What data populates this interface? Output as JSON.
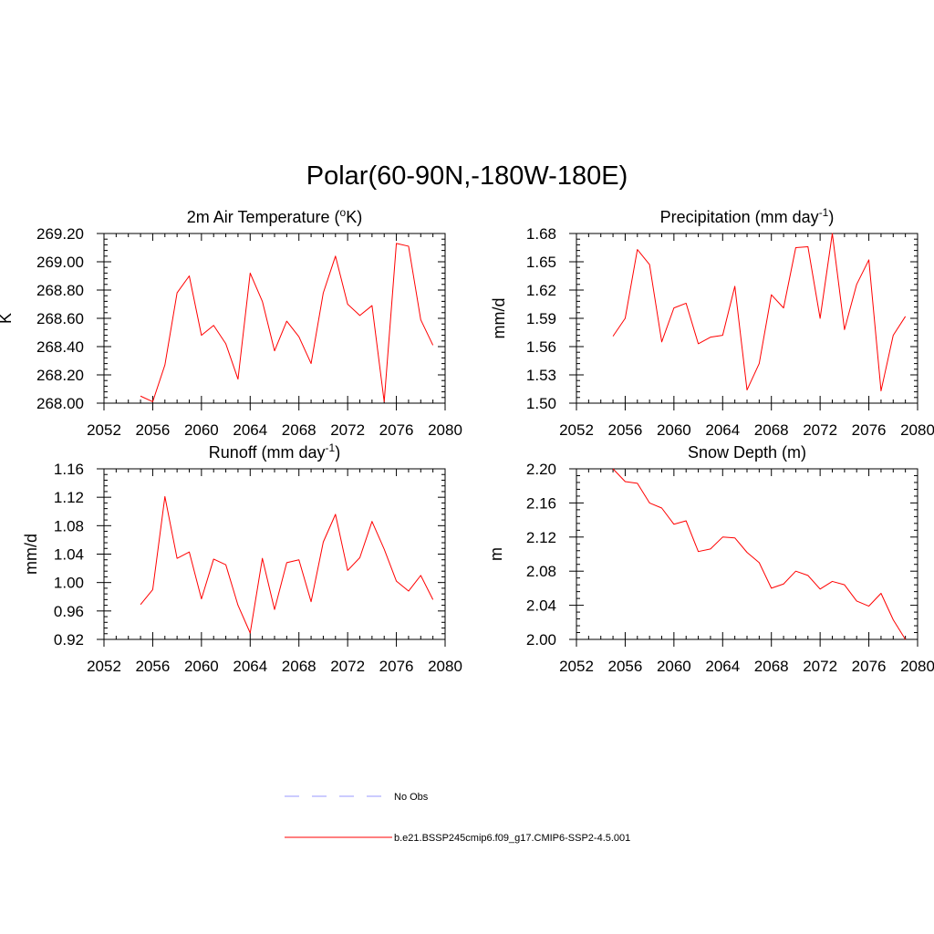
{
  "figure_title": "Polar(60-90N,-180W-180E)",
  "colors": {
    "model": "#ff0000",
    "obs": "#9999ff",
    "axis": "#000000"
  },
  "legend": {
    "obs_label": "No Obs",
    "model_label": "b.e21.BSSP245cmip6.f09_g17.CMIP6-SSP2-4.5.001"
  },
  "chart_data": [
    {
      "type": "line",
      "title": "2m Air Temperature (",
      "title_sup": "o",
      "title_suffix": "K)",
      "title_sup_position": "base",
      "ylabel": "K",
      "xlim": [
        2052,
        2080
      ],
      "ylim": [
        268.0,
        269.2
      ],
      "xticks": [
        "2052",
        "2056",
        "2060",
        "2064",
        "2068",
        "2072",
        "2076",
        "2080"
      ],
      "yticks": [
        "268.00",
        "268.20",
        "268.40",
        "268.60",
        "268.80",
        "269.00",
        "269.20"
      ],
      "x": [
        2055,
        2056,
        2057,
        2058,
        2059,
        2060,
        2061,
        2062,
        2063,
        2064,
        2065,
        2066,
        2067,
        2068,
        2069,
        2070,
        2071,
        2072,
        2073,
        2074,
        2075,
        2076,
        2077,
        2078,
        2079
      ],
      "series": [
        {
          "name": "b.e21.BSSP245cmip6.f09_g17.CMIP6-SSP2-4.5.001",
          "values": [
            268.05,
            268.01,
            268.27,
            268.78,
            268.9,
            268.48,
            268.55,
            268.42,
            268.17,
            268.92,
            268.72,
            268.37,
            268.58,
            268.47,
            268.28,
            268.78,
            269.04,
            268.7,
            268.62,
            268.69,
            268.01,
            269.13,
            269.11,
            268.59,
            268.41
          ]
        }
      ]
    },
    {
      "type": "line",
      "title": "Precipitation (mm day",
      "title_sup": "-1",
      "title_suffix": ")",
      "title_sup_position": "suffix",
      "ylabel": "mm/d",
      "xlim": [
        2052,
        2080
      ],
      "ylim": [
        1.5,
        1.68
      ],
      "xticks": [
        "2052",
        "2056",
        "2060",
        "2064",
        "2068",
        "2072",
        "2076",
        "2080"
      ],
      "yticks": [
        "1.50",
        "1.53",
        "1.56",
        "1.59",
        "1.62",
        "1.65",
        "1.68"
      ],
      "x": [
        2055,
        2056,
        2057,
        2058,
        2059,
        2060,
        2061,
        2062,
        2063,
        2064,
        2065,
        2066,
        2067,
        2068,
        2069,
        2070,
        2071,
        2072,
        2073,
        2074,
        2075,
        2076,
        2077,
        2078,
        2079
      ],
      "series": [
        {
          "name": "b.e21.BSSP245cmip6.f09_g17.CMIP6-SSP2-4.5.001",
          "values": [
            1.571,
            1.59,
            1.663,
            1.647,
            1.565,
            1.601,
            1.606,
            1.563,
            1.57,
            1.572,
            1.624,
            1.514,
            1.542,
            1.615,
            1.601,
            1.665,
            1.666,
            1.59,
            1.68,
            1.578,
            1.626,
            1.652,
            1.513,
            1.572,
            1.592
          ]
        }
      ]
    },
    {
      "type": "line",
      "title": "Runoff (mm day",
      "title_sup": "-1",
      "title_suffix": ")",
      "title_sup_position": "suffix",
      "ylabel": "mm/d",
      "xlim": [
        2052,
        2080
      ],
      "ylim": [
        0.92,
        1.16
      ],
      "xticks": [
        "2052",
        "2056",
        "2060",
        "2064",
        "2068",
        "2072",
        "2076",
        "2080"
      ],
      "yticks": [
        "0.92",
        "0.96",
        "1.00",
        "1.04",
        "1.08",
        "1.12",
        "1.16"
      ],
      "x": [
        2055,
        2056,
        2057,
        2058,
        2059,
        2060,
        2061,
        2062,
        2063,
        2064,
        2065,
        2066,
        2067,
        2068,
        2069,
        2070,
        2071,
        2072,
        2073,
        2074,
        2075,
        2076,
        2077,
        2078,
        2079
      ],
      "series": [
        {
          "name": "b.e21.BSSP245cmip6.f09_g17.CMIP6-SSP2-4.5.001",
          "values": [
            0.969,
            0.99,
            1.121,
            1.034,
            1.043,
            0.977,
            1.033,
            1.025,
            0.968,
            0.929,
            1.034,
            0.962,
            1.028,
            1.032,
            0.973,
            1.057,
            1.096,
            1.017,
            1.035,
            1.086,
            1.047,
            1.002,
            0.988,
            1.01,
            0.976
          ]
        }
      ]
    },
    {
      "type": "line",
      "title": "Snow Depth (m)",
      "title_sup": "",
      "title_suffix": "",
      "title_sup_position": "none",
      "ylabel": "m",
      "xlim": [
        2052,
        2080
      ],
      "ylim": [
        2.0,
        2.2
      ],
      "xticks": [
        "2052",
        "2056",
        "2060",
        "2064",
        "2068",
        "2072",
        "2076",
        "2080"
      ],
      "yticks": [
        "2.00",
        "2.04",
        "2.08",
        "2.12",
        "2.16",
        "2.20"
      ],
      "x": [
        2055,
        2056,
        2057,
        2058,
        2059,
        2060,
        2061,
        2062,
        2063,
        2064,
        2065,
        2066,
        2067,
        2068,
        2069,
        2070,
        2071,
        2072,
        2073,
        2074,
        2075,
        2076,
        2077,
        2078,
        2079
      ],
      "series": [
        {
          "name": "b.e21.BSSP245cmip6.f09_g17.CMIP6-SSP2-4.5.001",
          "values": [
            2.2,
            2.185,
            2.183,
            2.16,
            2.154,
            2.135,
            2.139,
            2.103,
            2.106,
            2.12,
            2.119,
            2.102,
            2.09,
            2.06,
            2.065,
            2.08,
            2.075,
            2.059,
            2.068,
            2.064,
            2.045,
            2.039,
            2.054,
            2.023,
            2.0
          ]
        }
      ]
    }
  ]
}
